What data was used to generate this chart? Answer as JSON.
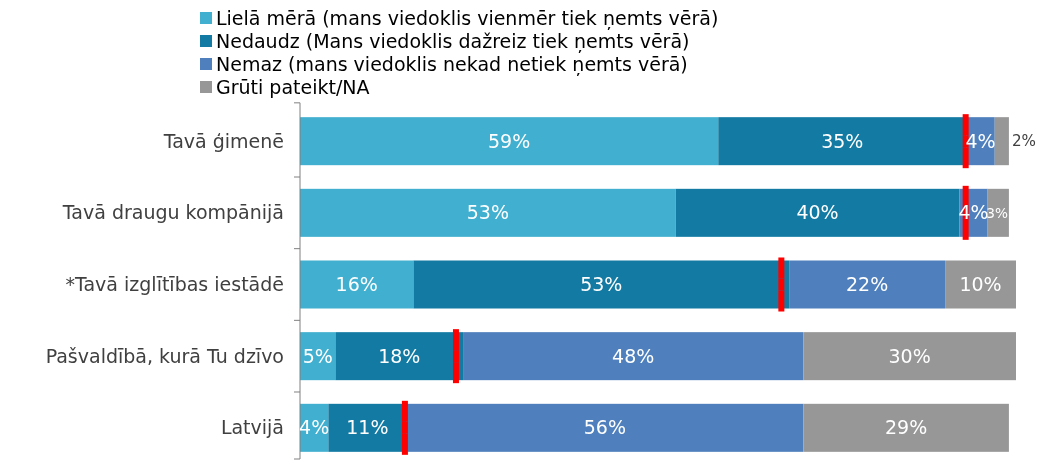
{
  "chart_data": {
    "type": "bar",
    "orientation": "horizontal",
    "stacked": true,
    "legend": "top",
    "categories": [
      "Tavā ģimenē",
      "Tavā draugu kompānijā",
      "*Tavā izglītības iestādē",
      "Pašvaldībā, kurā Tu dzīvo",
      "Latvijā"
    ],
    "series": [
      {
        "name": "Lielā mērā (mans viedoklis vienmēr tiek ņemts vērā)",
        "color": "#41afcf",
        "values": [
          59,
          53,
          16,
          5,
          4
        ],
        "value_labels": [
          "59%",
          "53%",
          "16%",
          "5%",
          "4%"
        ]
      },
      {
        "name": "Nedaudz (Mans viedoklis dažreiz tiek ņemts vērā)",
        "color": "#137ba3",
        "values": [
          35,
          40,
          53,
          18,
          11
        ],
        "value_labels": [
          "35%",
          "40%",
          "53%",
          "18%",
          "11%"
        ]
      },
      {
        "name": "Nemaz (mans viedoklis nekad netiek ņemts vērā)",
        "color": "#4f80bd",
        "values": [
          4,
          4,
          22,
          48,
          56
        ],
        "value_labels": [
          "4%",
          "4%",
          "22%",
          "48%",
          "56%"
        ]
      },
      {
        "name": "Grūti pateikt/NA",
        "color": "#979797",
        "values": [
          2,
          3,
          10,
          30,
          29
        ],
        "value_labels": [
          "2%",
          "3%",
          "10%",
          "30%",
          "29%"
        ]
      },
      {
        "type": "scatter",
        "color": "#ff0000",
        "x": [
          "Tavā ģimenē",
          "Tavā draugu kompānijā",
          "*Tavā izglītības iestādē",
          "Pašvaldībā, kurā Tu dzīvo",
          "Latvijā"
        ],
        "values": [
          93.9,
          93.9,
          67.9,
          22,
          14.8
        ]
      }
    ]
  }
}
